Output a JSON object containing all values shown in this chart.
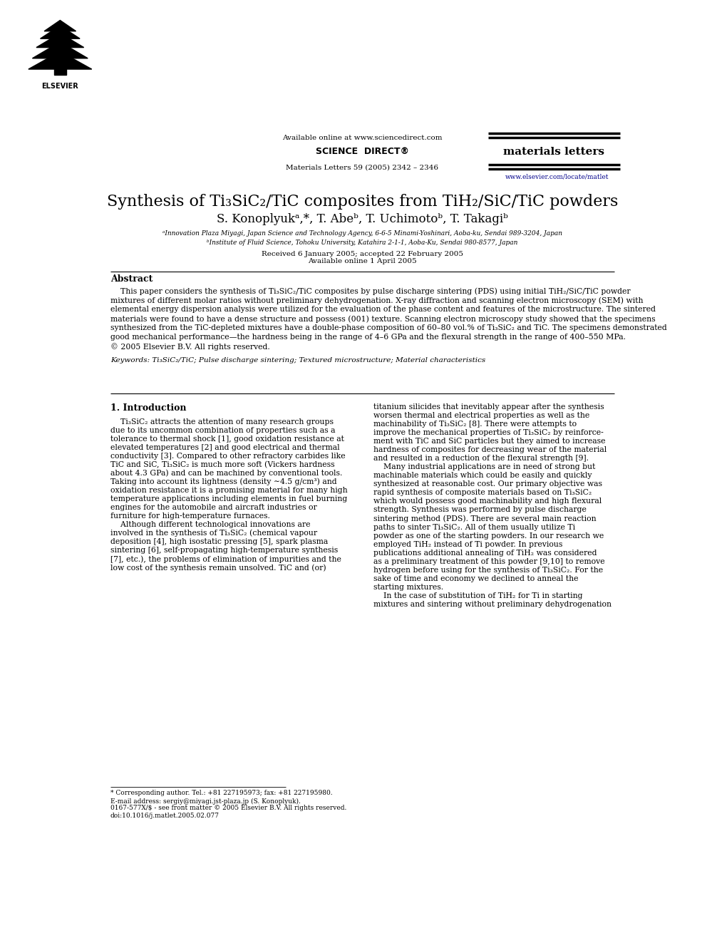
{
  "page_width": 9.92,
  "page_height": 13.23,
  "bg_color": "#ffffff",
  "header_available": "Available online at www.sciencedirect.com",
  "header_citation": "Materials Letters 59 (2005) 2342 – 2346",
  "header_journal": "materials letters",
  "header_website": "www.elsevier.com/locate/matlet",
  "elsevier_text": "ELSEVIER",
  "sciencedirect": "SCIENCE  DIRECT®",
  "title": "Synthesis of Ti₃SiC₂/TiC composites from TiH₂/SiC/TiC powders",
  "authors": "S. Konoplyukᵃ,*, T. Abeᵇ, T. Uchimotoᵇ, T. Takagiᵇ",
  "affil1": "ᵃInnovation Plaza Miyagi, Japan Science and Technology Agency, 6-6-5 Minami-Yoshinari, Aoba-ku, Sendai 989-3204, Japan",
  "affil2": "ᵇInstitute of Fluid Science, Tohoku University, Katahira 2-1-1, Aoba-Ku, Sendai 980-8577, Japan",
  "received": "Received 6 January 2005; accepted 22 February 2005",
  "available": "Available online 1 April 2005",
  "abstract_title": "Abstract",
  "abstract_lines": [
    "    This paper considers the synthesis of Ti₃SiC₂/TiC composites by pulse discharge sintering (PDS) using initial TiH₂/SiC/TiC powder",
    "mixtures of different molar ratios without preliminary dehydrogenation. X-ray diffraction and scanning electron microscopy (SEM) with",
    "elemental energy dispersion analysis were utilized for the evaluation of the phase content and features of the microstructure. The sintered",
    "materials were found to have a dense structure and possess (001) texture. Scanning electron microscopy study showed that the specimens",
    "synthesized from the TiC-depleted mixtures have a double-phase composition of 60–80 vol.% of Ti₃SiC₂ and TiC. The specimens demonstrated",
    "good mechanical performance—the hardness being in the range of 4–6 GPa and the flexural strength in the range of 400–550 MPa.",
    "© 2005 Elsevier B.V. All rights reserved."
  ],
  "keywords": "Keywords: Ti₃SiC₂/TiC; Pulse discharge sintering; Textured microstructure; Material characteristics",
  "section1_title": "1. Introduction",
  "col1_lines": [
    "    Ti₃SiC₂ attracts the attention of many research groups",
    "due to its uncommon combination of properties such as a",
    "tolerance to thermal shock [1], good oxidation resistance at",
    "elevated temperatures [2] and good electrical and thermal",
    "conductivity [3]. Compared to other refractory carbides like",
    "TiC and SiC, Ti₃SiC₂ is much more soft (Vickers hardness",
    "about 4.3 GPa) and can be machined by conventional tools.",
    "Taking into account its lightness (density ∼4.5 g/cm³) and",
    "oxidation resistance it is a promising material for many high",
    "temperature applications including elements in fuel burning",
    "engines for the automobile and aircraft industries or",
    "furniture for high-temperature furnaces.",
    "    Although different technological innovations are",
    "involved in the synthesis of Ti₃SiC₂ (chemical vapour",
    "deposition [4], high isostatic pressing [5], spark plasma",
    "sintering [6], self-propagating high-temperature synthesis",
    "[7], etc.), the problems of elimination of impurities and the",
    "low cost of the synthesis remain unsolved. TiC and (or)"
  ],
  "col2_lines": [
    "titanium silicides that inevitably appear after the synthesis",
    "worsen thermal and electrical properties as well as the",
    "machinability of Ti₃SiC₂ [8]. There were attempts to",
    "improve the mechanical properties of Ti₃SiC₂ by reinforce-",
    "ment with TiC and SiC particles but they aimed to increase",
    "hardness of composites for decreasing wear of the material",
    "and resulted in a reduction of the flexural strength [9].",
    "    Many industrial applications are in need of strong but",
    "machinable materials which could be easily and quickly",
    "synthesized at reasonable cost. Our primary objective was",
    "rapid synthesis of composite materials based on Ti₃SiC₂",
    "which would possess good machinability and high flexural",
    "strength. Synthesis was performed by pulse discharge",
    "sintering method (PDS). There are several main reaction",
    "paths to sinter Ti₃SiC₂. All of them usually utilize Ti",
    "powder as one of the starting powders. In our research we",
    "employed TiH₂ instead of Ti powder. In previous",
    "publications additional annealing of TiH₂ was considered",
    "as a preliminary treatment of this powder [9,10] to remove",
    "hydrogen before using for the synthesis of Ti₃SiC₂. For the",
    "sake of time and economy we declined to anneal the",
    "starting mixtures.",
    "    In the case of substitution of TiH₂ for Ti in starting",
    "mixtures and sintering without preliminary dehydrogenation"
  ],
  "footer_line1": "* Corresponding author. Tel.: +81 227195973; fax: +81 227195980.",
  "footer_line2": "E-mail address: sergiy@miyagi.jst-plaza.jp (S. Konoplyuk).",
  "footer_line3": "0167-577X/$ - see front matter © 2005 Elsevier B.V. All rights reserved.",
  "footer_line4": "doi:10.1016/j.matlet.2005.02.077"
}
